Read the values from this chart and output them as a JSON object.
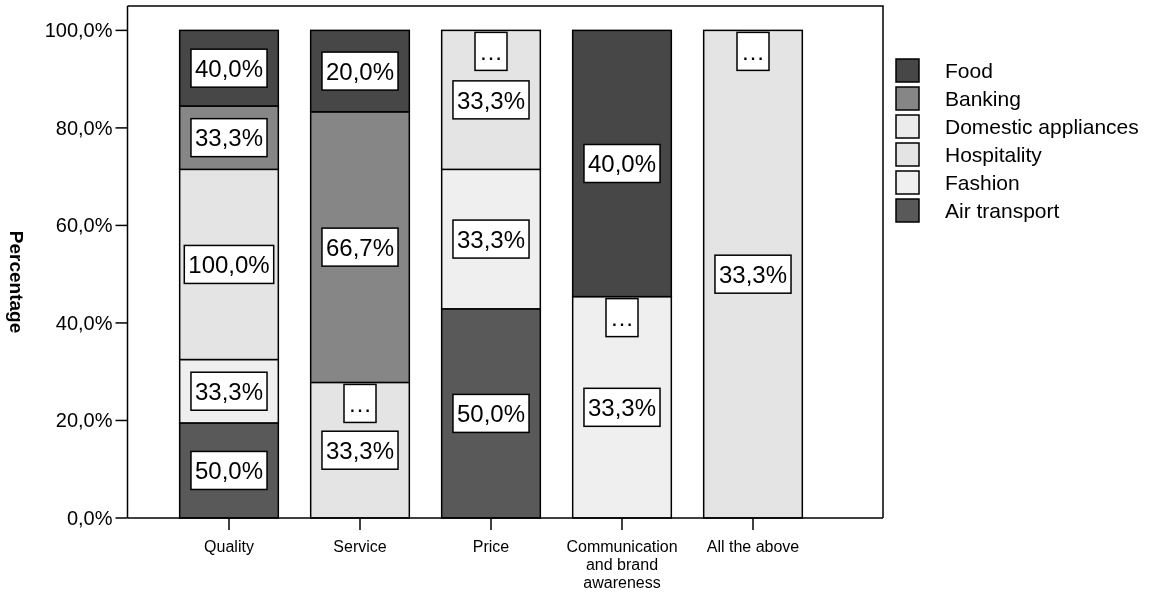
{
  "chart_data": {
    "type": "bar",
    "stacked": true,
    "categories": [
      "Quality",
      "Service",
      "Price",
      "Communication and brand awareness",
      "All the above"
    ],
    "series": [
      {
        "name": "Air transport",
        "color": "#595959",
        "values": [
          19.5,
          null,
          42.9,
          null,
          null
        ]
      },
      {
        "name": "Fashion",
        "color": "#efefef",
        "values": [
          13.0,
          null,
          28.6,
          45.4,
          null
        ]
      },
      {
        "name": "Hospitality",
        "color": "#e4e4e4",
        "values": [
          39.0,
          27.8,
          28.5,
          null,
          100
        ]
      },
      {
        "name": "Domestic appliances",
        "color": "#ebebeb",
        "values": [
          null,
          0,
          0,
          0,
          0
        ]
      },
      {
        "name": "Banking",
        "color": "#868686",
        "values": [
          13.0,
          55.5,
          null,
          null,
          null
        ]
      },
      {
        "name": "Food",
        "color": "#474747",
        "values": [
          15.5,
          16.7,
          null,
          54.6,
          null
        ]
      }
    ],
    "annotations": [
      "50,0%",
      "33,3%",
      "100,0%",
      "33,3%",
      "40,0%",
      "33,3%",
      "…",
      "66,7%",
      "20,0%",
      "50,0%",
      "33,3%",
      "33,3%",
      "…",
      "33,3%",
      "…",
      "40,0%",
      "33,3%",
      "…"
    ],
    "ylabel": "Percentage",
    "ylim": [
      0,
      105
    ],
    "yticks": [
      {
        "value": 0,
        "label": "0,0%"
      },
      {
        "value": 20,
        "label": "20,0%"
      },
      {
        "value": 40,
        "label": "40,0%"
      },
      {
        "value": 60,
        "label": "60,0%"
      },
      {
        "value": 80,
        "label": "80,0%"
      },
      {
        "value": 100,
        "label": "100,0%"
      }
    ],
    "legend": "right",
    "grid": false
  }
}
